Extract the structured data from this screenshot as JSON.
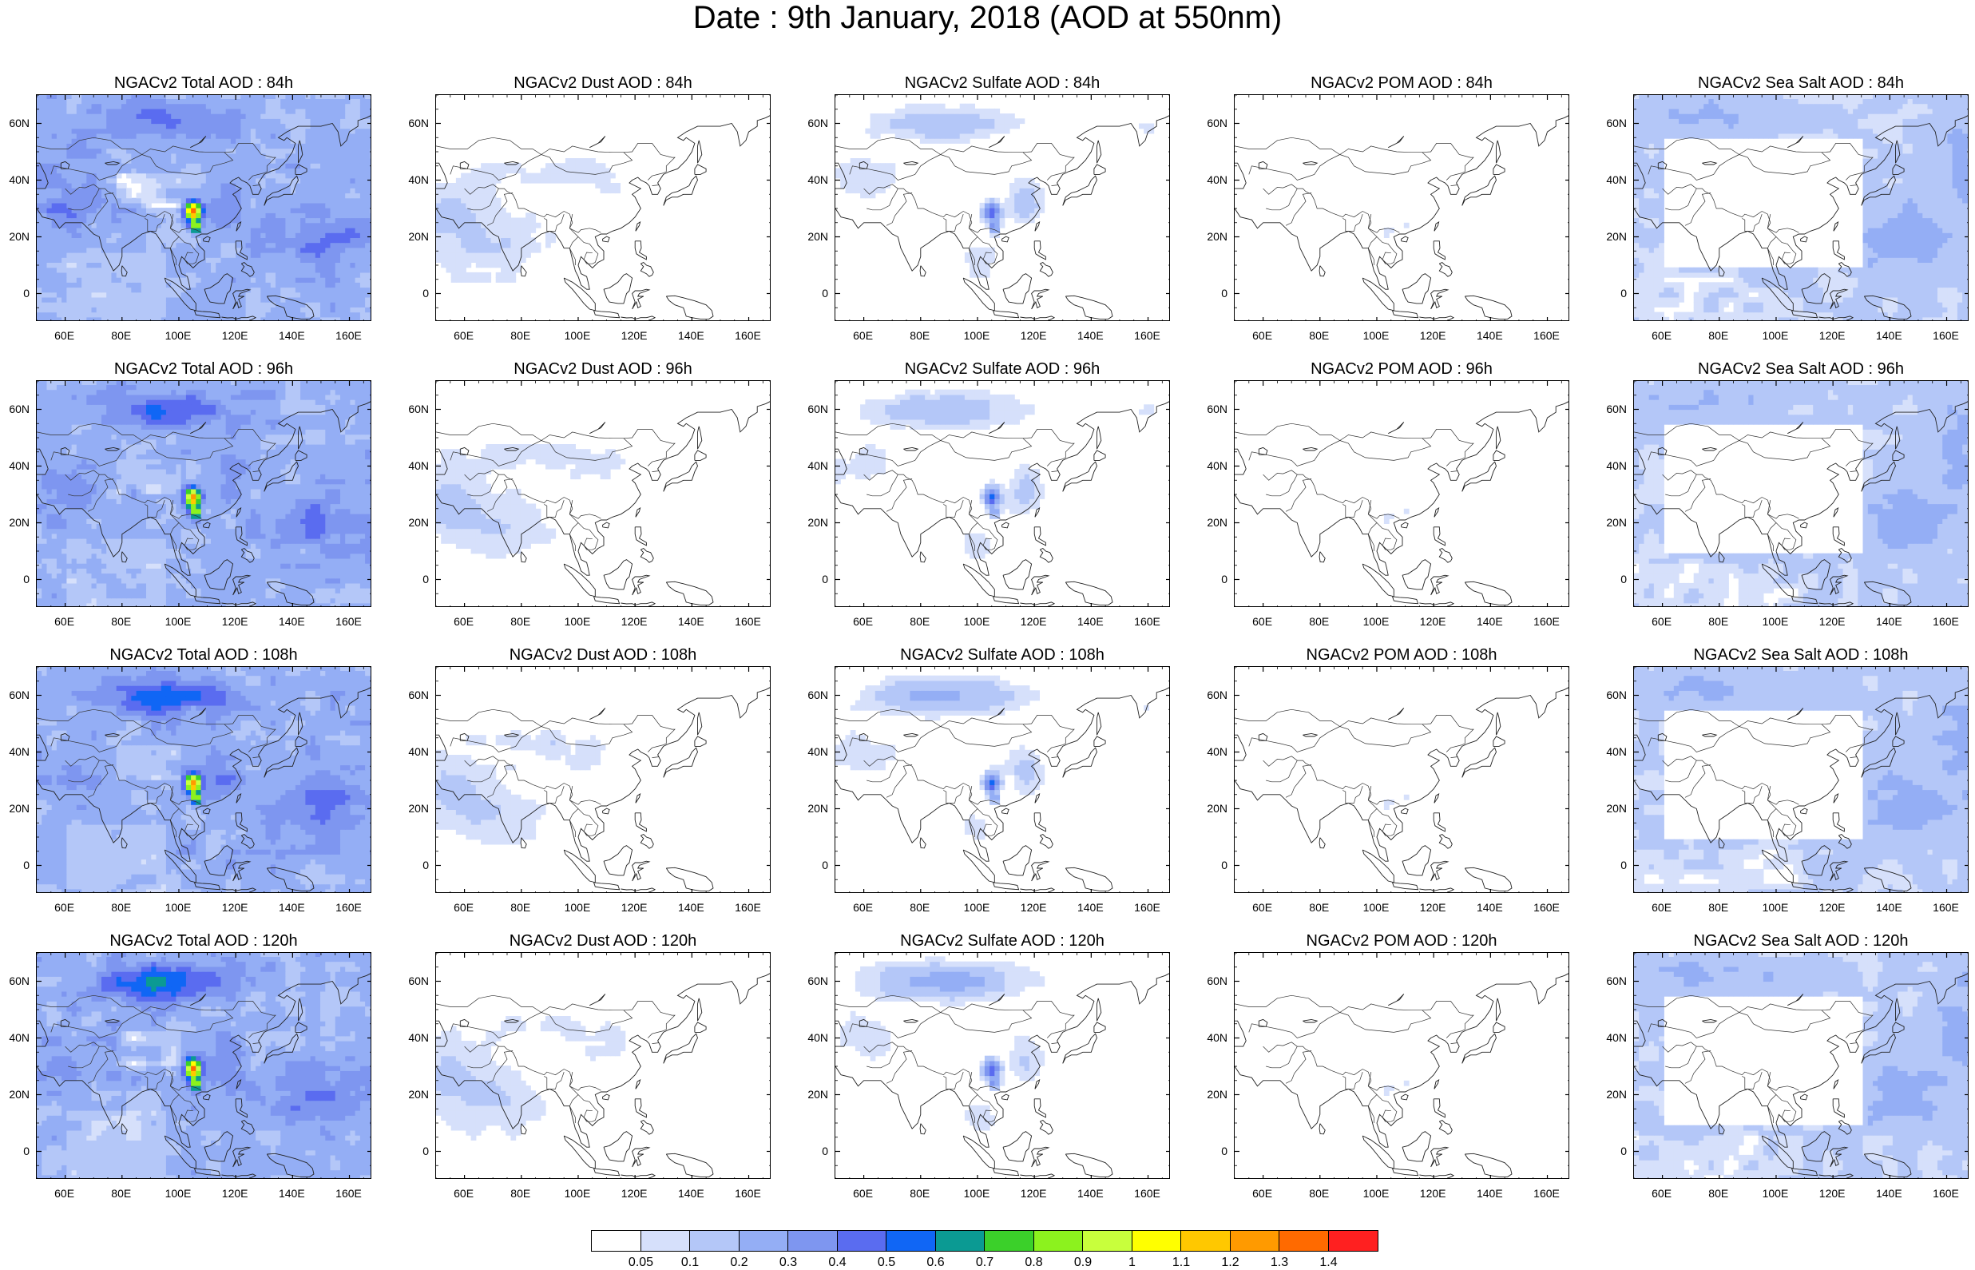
{
  "title": "Date : 9th January, 2018 (AOD at 550nm)",
  "axes": {
    "lat_ticks": [
      "60N",
      "40N",
      "20N",
      "0"
    ],
    "lon_ticks": [
      "60E",
      "80E",
      "100E",
      "120E",
      "140E",
      "160E"
    ]
  },
  "panels": [
    [
      {
        "title": "NGACv2 Total AOD : 84h",
        "species": "total"
      },
      {
        "title": "NGACv2 Dust AOD : 84h",
        "species": "dust"
      },
      {
        "title": "NGACv2 Sulfate AOD : 84h",
        "species": "sulfate"
      },
      {
        "title": "NGACv2 POM AOD : 84h",
        "species": "pom"
      },
      {
        "title": "NGACv2 Sea Salt AOD : 84h",
        "species": "seasalt"
      }
    ],
    [
      {
        "title": "NGACv2 Total AOD : 96h",
        "species": "total"
      },
      {
        "title": "NGACv2 Dust AOD : 96h",
        "species": "dust"
      },
      {
        "title": "NGACv2 Sulfate AOD : 96h",
        "species": "sulfate"
      },
      {
        "title": "NGACv2 POM AOD : 96h",
        "species": "pom"
      },
      {
        "title": "NGACv2 Sea Salt AOD : 96h",
        "species": "seasalt"
      }
    ],
    [
      {
        "title": "NGACv2 Total AOD : 108h",
        "species": "total"
      },
      {
        "title": "NGACv2 Dust AOD : 108h",
        "species": "dust"
      },
      {
        "title": "NGACv2 Sulfate AOD : 108h",
        "species": "sulfate"
      },
      {
        "title": "NGACv2 POM AOD : 108h",
        "species": "pom"
      },
      {
        "title": "NGACv2 Sea Salt AOD : 108h",
        "species": "seasalt"
      }
    ],
    [
      {
        "title": "NGACv2 Total AOD : 120h",
        "species": "total"
      },
      {
        "title": "NGACv2 Dust AOD : 120h",
        "species": "dust"
      },
      {
        "title": "NGACv2 Sulfate AOD : 120h",
        "species": "sulfate"
      },
      {
        "title": "NGACv2 POM AOD : 120h",
        "species": "pom"
      },
      {
        "title": "NGACv2 Sea Salt  AOD : 120h",
        "species": "seasalt"
      }
    ]
  ],
  "colorbar": {
    "labels": [
      "0.05",
      "0.1",
      "0.2",
      "0.3",
      "0.4",
      "0.5",
      "0.6",
      "0.7",
      "0.8",
      "0.9",
      "1",
      "1.1",
      "1.2",
      "1.3",
      "1.4"
    ],
    "colors": [
      "#ffffff",
      "#d6e0fb",
      "#b4c7f8",
      "#94aef5",
      "#7e96f0",
      "#5a6cf0",
      "#1066f5",
      "#0b9a93",
      "#3bd02a",
      "#8cf21e",
      "#c8ff3c",
      "#ffff00",
      "#ffc800",
      "#ff9a00",
      "#ff6a00",
      "#ff2020"
    ]
  }
}
